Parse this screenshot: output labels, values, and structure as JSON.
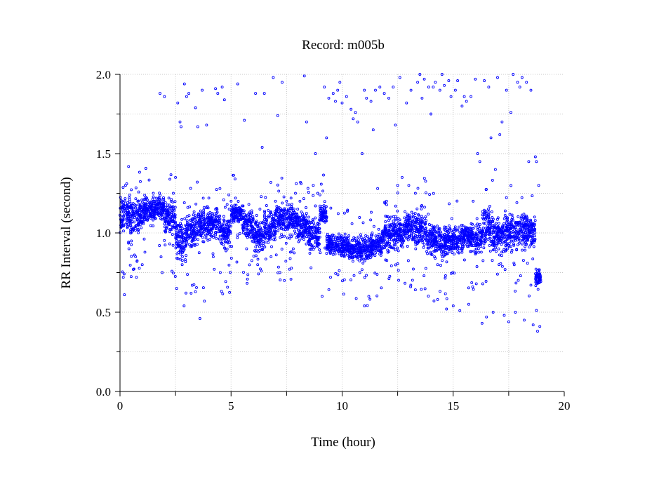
{
  "chart_data": {
    "type": "scatter",
    "title": "Record:  m005b",
    "xlabel": "Time (hour)",
    "ylabel": "RR Interval (second)",
    "xlim": [
      0,
      20
    ],
    "ylim": [
      0.0,
      2.0
    ],
    "x_ticks": [
      0,
      5,
      10,
      15,
      20
    ],
    "x_tick_labels": [
      "0",
      "5",
      "10",
      "15",
      "20"
    ],
    "y_ticks": [
      0.0,
      0.5,
      1.0,
      1.5,
      2.0
    ],
    "y_tick_labels": [
      "0.0",
      "0.5",
      "1.0",
      "1.5",
      "2.0"
    ],
    "x_minor_ticks": [
      2.5,
      7.5,
      12.5,
      17.5
    ],
    "y_minor_ticks": [
      0.25,
      0.75,
      1.25,
      1.75
    ],
    "grid": true,
    "marker": "open-circle",
    "color": "#0000ff",
    "series": [
      {
        "points": [
          [
            0.1,
            1.06
          ],
          [
            0.15,
            0.72
          ],
          [
            0.2,
            0.61
          ],
          [
            0.25,
            1.3
          ],
          [
            0.3,
            1.31
          ],
          [
            0.35,
            1.12
          ],
          [
            0.4,
            0.9
          ],
          [
            0.5,
            1.0
          ],
          [
            0.6,
            0.77
          ],
          [
            0.7,
            0.85
          ],
          [
            0.8,
            1.2
          ],
          [
            0.9,
            1.18
          ],
          [
            1.0,
            0.8
          ],
          [
            1.1,
            1.15
          ],
          [
            1.2,
            1.22
          ],
          [
            1.3,
            1.1
          ],
          [
            1.4,
            1.18
          ],
          [
            1.5,
            1.25
          ],
          [
            1.6,
            1.2
          ],
          [
            1.7,
            1.12
          ],
          [
            1.8,
            1.88
          ],
          [
            1.9,
            0.75
          ],
          [
            2.0,
            1.86
          ],
          [
            2.1,
            1.15
          ],
          [
            2.2,
            1.22
          ],
          [
            2.3,
            1.2
          ],
          [
            2.4,
            1.25
          ],
          [
            2.5,
            1.35
          ],
          [
            2.55,
            0.65
          ],
          [
            2.6,
            1.82
          ],
          [
            2.7,
            1.7
          ],
          [
            2.75,
            1.67
          ],
          [
            2.8,
            0.8
          ],
          [
            2.9,
            1.94
          ],
          [
            3.0,
            1.86
          ],
          [
            3.1,
            1.88
          ],
          [
            3.2,
            0.62
          ],
          [
            3.3,
            1.0
          ],
          [
            3.4,
            1.79
          ],
          [
            3.5,
            1.67
          ],
          [
            3.6,
            0.46
          ],
          [
            3.7,
            1.9
          ],
          [
            3.8,
            0.57
          ],
          [
            3.9,
            1.68
          ],
          [
            4.0,
            1.22
          ],
          [
            4.1,
            1.1
          ],
          [
            4.2,
            0.85
          ],
          [
            4.3,
            1.91
          ],
          [
            4.4,
            1.88
          ],
          [
            4.5,
            1.28
          ],
          [
            4.6,
            1.92
          ],
          [
            4.7,
            1.84
          ],
          [
            4.8,
            1.05
          ],
          [
            4.9,
            1.24
          ],
          [
            5.0,
            1.2
          ],
          [
            5.1,
            1.1
          ],
          [
            5.2,
            1.22
          ],
          [
            5.3,
            1.94
          ],
          [
            5.4,
            1.15
          ],
          [
            5.5,
            1.05
          ],
          [
            5.6,
            1.71
          ],
          [
            5.7,
            0.9
          ],
          [
            5.8,
            1.18
          ],
          [
            5.9,
            1.05
          ],
          [
            6.0,
            1.0
          ],
          [
            6.1,
            1.88
          ],
          [
            6.2,
            0.8
          ],
          [
            6.3,
            1.15
          ],
          [
            6.4,
            1.54
          ],
          [
            6.5,
            1.88
          ],
          [
            6.6,
            1.0
          ],
          [
            6.7,
            1.1
          ],
          [
            6.8,
            0.85
          ],
          [
            6.9,
            1.98
          ],
          [
            7.0,
            1.2
          ],
          [
            7.1,
            1.74
          ],
          [
            7.2,
            0.75
          ],
          [
            7.3,
            1.95
          ],
          [
            7.4,
            0.7
          ],
          [
            7.5,
            1.2
          ],
          [
            7.6,
            1.1
          ],
          [
            7.7,
            1.22
          ],
          [
            7.8,
            0.9
          ],
          [
            7.9,
            1.25
          ],
          [
            8.0,
            1.15
          ],
          [
            8.1,
            1.2
          ],
          [
            8.2,
            1.0
          ],
          [
            8.3,
            1.99
          ],
          [
            8.4,
            1.7
          ],
          [
            8.5,
            1.1
          ],
          [
            8.6,
            0.78
          ],
          [
            8.7,
            1.3
          ],
          [
            8.8,
            1.5
          ],
          [
            8.9,
            1.25
          ],
          [
            9.0,
            1.24
          ],
          [
            9.1,
            0.6
          ],
          [
            9.2,
            1.92
          ],
          [
            9.3,
            1.6
          ],
          [
            9.4,
            1.85
          ],
          [
            9.5,
            0.9
          ],
          [
            9.6,
            1.88
          ],
          [
            9.7,
            1.83
          ],
          [
            9.8,
            1.9
          ],
          [
            9.9,
            1.95
          ],
          [
            10.0,
            1.82
          ],
          [
            10.1,
            0.85
          ],
          [
            10.2,
            1.86
          ],
          [
            10.3,
            0.9
          ],
          [
            10.4,
            1.78
          ],
          [
            10.5,
            1.72
          ],
          [
            10.6,
            1.76
          ],
          [
            10.7,
            1.7
          ],
          [
            10.8,
            0.75
          ],
          [
            10.9,
            1.5
          ],
          [
            11.0,
            1.9
          ],
          [
            11.1,
            1.85
          ],
          [
            11.2,
            0.6
          ],
          [
            11.3,
            1.83
          ],
          [
            11.4,
            1.65
          ],
          [
            11.5,
            1.9
          ],
          [
            11.6,
            1.28
          ],
          [
            11.7,
            1.92
          ],
          [
            11.8,
            0.9
          ],
          [
            11.9,
            1.88
          ],
          [
            12.0,
            1.2
          ],
          [
            12.1,
            1.85
          ],
          [
            12.2,
            1.1
          ],
          [
            12.3,
            1.92
          ],
          [
            12.4,
            1.68
          ],
          [
            12.5,
            1.3
          ],
          [
            12.6,
            1.98
          ],
          [
            12.7,
            1.35
          ],
          [
            12.8,
            1.05
          ],
          [
            12.9,
            1.82
          ],
          [
            13.0,
            1.3
          ],
          [
            13.1,
            1.9
          ],
          [
            13.2,
            1.1
          ],
          [
            13.3,
            1.25
          ],
          [
            13.4,
            1.95
          ],
          [
            13.5,
            2.0
          ],
          [
            13.6,
            1.85
          ],
          [
            13.7,
            1.97
          ],
          [
            13.8,
            0.95
          ],
          [
            13.9,
            1.92
          ],
          [
            14.0,
            1.75
          ],
          [
            14.1,
            1.92
          ],
          [
            14.2,
            1.95
          ],
          [
            14.3,
            0.8
          ],
          [
            14.4,
            1.9
          ],
          [
            14.5,
            2.0
          ],
          [
            14.6,
            1.93
          ],
          [
            14.7,
            0.52
          ],
          [
            14.8,
            1.96
          ],
          [
            14.9,
            1.86
          ],
          [
            15.0,
            0.54
          ],
          [
            15.1,
            1.9
          ],
          [
            15.2,
            1.96
          ],
          [
            15.3,
            0.51
          ],
          [
            15.4,
            1.8
          ],
          [
            15.5,
            1.86
          ],
          [
            15.6,
            1.83
          ],
          [
            15.7,
            0.55
          ],
          [
            15.8,
            1.86
          ],
          [
            15.9,
            1.2
          ],
          [
            16.0,
            1.97
          ],
          [
            16.1,
            1.5
          ],
          [
            16.2,
            1.45
          ],
          [
            16.3,
            0.43
          ],
          [
            16.4,
            1.96
          ],
          [
            16.5,
            0.47
          ],
          [
            16.6,
            1.92
          ],
          [
            16.7,
            1.6
          ],
          [
            16.8,
            0.5
          ],
          [
            16.9,
            1.4
          ],
          [
            17.0,
            1.98
          ],
          [
            17.1,
            1.62
          ],
          [
            17.2,
            1.7
          ],
          [
            17.3,
            0.48
          ],
          [
            17.4,
            1.9
          ],
          [
            17.5,
            0.44
          ],
          [
            17.6,
            1.76
          ],
          [
            17.7,
            2.0
          ],
          [
            17.8,
            0.5
          ],
          [
            17.9,
            1.95
          ],
          [
            18.0,
            1.92
          ],
          [
            18.1,
            1.98
          ],
          [
            18.2,
            0.45
          ],
          [
            18.3,
            1.95
          ],
          [
            18.4,
            1.45
          ],
          [
            18.5,
            1.9
          ],
          [
            18.6,
            0.42
          ],
          [
            18.7,
            1.48
          ],
          [
            18.8,
            0.38
          ],
          [
            18.9,
            0.41
          ],
          [
            18.85,
            1.3
          ],
          [
            18.75,
            1.45
          ]
        ],
        "bands": [
          [
            0.0,
            1.12,
            0.15
          ],
          [
            0.5,
            1.1,
            0.14
          ],
          [
            1.0,
            1.14,
            0.12
          ],
          [
            1.5,
            1.16,
            0.1
          ],
          [
            2.0,
            1.1,
            0.14
          ],
          [
            2.5,
            0.96,
            0.18
          ],
          [
            3.0,
            1.02,
            0.16
          ],
          [
            3.5,
            1.05,
            0.15
          ],
          [
            4.0,
            1.06,
            0.14
          ],
          [
            4.5,
            1.0,
            0.14
          ],
          [
            5.0,
            1.12,
            0.1
          ],
          [
            5.5,
            1.06,
            0.14
          ],
          [
            6.0,
            0.98,
            0.16
          ],
          [
            6.5,
            1.04,
            0.16
          ],
          [
            7.0,
            1.08,
            0.14
          ],
          [
            7.5,
            1.08,
            0.14
          ],
          [
            8.0,
            1.05,
            0.14
          ],
          [
            8.5,
            0.98,
            0.16
          ],
          [
            9.0,
            1.12,
            0.1
          ],
          [
            9.3,
            0.93,
            0.1
          ],
          [
            9.8,
            0.92,
            0.09
          ],
          [
            10.3,
            0.9,
            0.1
          ],
          [
            10.8,
            0.9,
            0.12
          ],
          [
            11.3,
            0.92,
            0.1
          ],
          [
            11.8,
            0.98,
            0.14
          ],
          [
            12.3,
            1.0,
            0.15
          ],
          [
            12.8,
            1.04,
            0.16
          ],
          [
            13.3,
            1.02,
            0.18
          ],
          [
            13.8,
            0.96,
            0.14
          ],
          [
            14.3,
            0.94,
            0.14
          ],
          [
            14.8,
            0.96,
            0.12
          ],
          [
            15.3,
            0.98,
            0.12
          ],
          [
            15.8,
            0.96,
            0.14
          ],
          [
            16.3,
            1.04,
            0.2
          ],
          [
            16.8,
            0.98,
            0.16
          ],
          [
            17.3,
            1.0,
            0.18
          ],
          [
            17.8,
            1.02,
            0.16
          ],
          [
            18.3,
            1.0,
            0.16
          ],
          [
            18.7,
            0.72,
            0.07
          ]
        ]
      }
    ]
  }
}
